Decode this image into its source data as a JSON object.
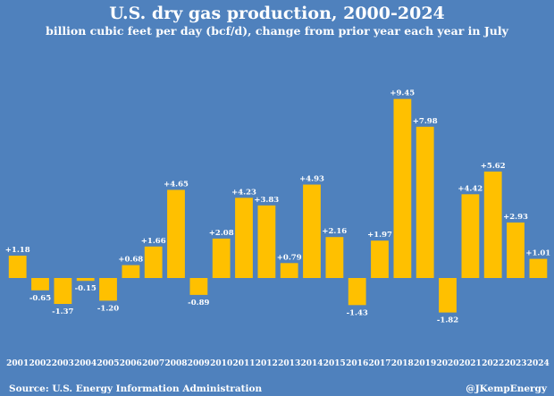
{
  "title": "U.S. dry gas production, 2000-2024",
  "subtitle": "billion cubic feet per day (bcf/d), change from prior year each year in July",
  "source": "Source: U.S. Energy Information Administration",
  "handle": "@JKempEnergy",
  "colors": {
    "background": "#4f81bd",
    "bar": "#ffc000",
    "text": "#ffffff"
  },
  "chart_data": {
    "type": "bar",
    "categories": [
      "2001",
      "2002",
      "2003",
      "2004",
      "2005",
      "2006",
      "2007",
      "2008",
      "2009",
      "2010",
      "2011",
      "2012",
      "2013",
      "2014",
      "2015",
      "2016",
      "2017",
      "2018",
      "2019",
      "2020",
      "2021",
      "2022",
      "2023",
      "2024"
    ],
    "values": [
      1.18,
      -0.65,
      -1.37,
      -0.15,
      -1.2,
      0.68,
      1.66,
      4.65,
      -0.89,
      2.08,
      4.23,
      3.83,
      0.79,
      4.93,
      2.16,
      -1.43,
      1.97,
      9.45,
      7.98,
      -1.82,
      4.42,
      5.62,
      2.93,
      1.01
    ],
    "data_labels": [
      "+1.18",
      "-0.65",
      "-1.37",
      "-0.15",
      "-1.20",
      "+0.68",
      "+1.66",
      "+4.65",
      "-0.89",
      "+2.08",
      "+4.23",
      "+3.83",
      "+0.79",
      "+4.93",
      "+2.16",
      "-1.43",
      "+1.97",
      "+9.45",
      "+7.98",
      "-1.82",
      "+4.42",
      "+5.62",
      "+2.93",
      "+1.01"
    ],
    "ylim": [
      -2,
      10
    ],
    "grid": false,
    "legend": "none"
  }
}
